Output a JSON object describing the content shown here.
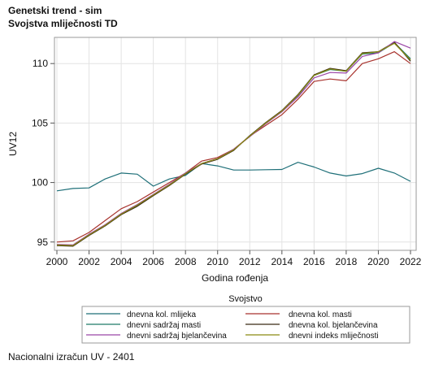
{
  "header": {
    "title": "Genetski trend - sim",
    "subtitle": "Svojstva mliječnosti TD"
  },
  "footnote": "Nacionalni izračun UV - 2401",
  "chart_data": {
    "type": "line",
    "title": "Genetski trend - sim",
    "subtitle": "Svojstva mliječnosti TD",
    "xlabel": "Godina rođenja",
    "ylabel": "UV12",
    "xlim": [
      2000,
      2022
    ],
    "ylim": [
      94.3,
      112.2
    ],
    "x_ticks": [
      2000,
      2002,
      2004,
      2006,
      2008,
      2010,
      2012,
      2014,
      2016,
      2018,
      2020,
      2022
    ],
    "y_ticks": [
      95,
      100,
      105,
      110
    ],
    "grid": true,
    "legend": {
      "title": "Svojstvo",
      "placement": "bottom"
    },
    "x": [
      2000,
      2001,
      2002,
      2003,
      2004,
      2005,
      2006,
      2007,
      2008,
      2009,
      2010,
      2011,
      2012,
      2013,
      2014,
      2015,
      2016,
      2017,
      2018,
      2019,
      2020,
      2021,
      2022
    ],
    "series": [
      {
        "name": "dnevna kol. mlijeka",
        "color": "#1e6f78",
        "values": [
          99.3,
          99.5,
          99.55,
          100.3,
          100.8,
          100.7,
          99.7,
          100.3,
          100.6,
          101.6,
          101.4,
          101.05,
          101.05,
          101.08,
          101.1,
          101.7,
          101.3,
          100.8,
          100.55,
          100.75,
          101.2,
          100.8,
          100.1
        ]
      },
      {
        "name": "dnevna kol. masti",
        "color": "#a8322d",
        "values": [
          95.0,
          95.1,
          95.8,
          96.8,
          97.8,
          98.4,
          99.2,
          100.0,
          100.8,
          101.8,
          102.1,
          102.8,
          103.9,
          104.8,
          105.7,
          107.0,
          108.5,
          108.7,
          108.55,
          110.0,
          110.4,
          111.0,
          110.0
        ]
      },
      {
        "name": "dnevni sadržaj masti",
        "color": "#1f7a68",
        "values": [
          94.75,
          94.7,
          95.6,
          96.4,
          97.35,
          98.1,
          98.95,
          99.8,
          100.75,
          101.6,
          102.0,
          102.75,
          103.9,
          105.0,
          106.0,
          107.3,
          109.0,
          109.5,
          109.35,
          110.8,
          110.9,
          111.75,
          110.4
        ]
      },
      {
        "name": "dnevna kol. bjelančevina",
        "color": "#3a2a14",
        "values": [
          94.7,
          94.65,
          95.55,
          96.35,
          97.3,
          98.0,
          98.9,
          99.75,
          100.7,
          101.55,
          101.95,
          102.7,
          103.95,
          105.05,
          106.05,
          107.4,
          109.05,
          109.6,
          109.4,
          110.9,
          111.0,
          111.8,
          110.2
        ]
      },
      {
        "name": "dnevni sadržaj bjelančevina",
        "color": "#9a46a8",
        "values": [
          94.8,
          94.75,
          95.65,
          96.45,
          97.4,
          98.15,
          99.0,
          99.85,
          100.8,
          101.6,
          102.0,
          102.8,
          103.85,
          104.95,
          105.95,
          107.2,
          108.8,
          109.25,
          109.2,
          110.6,
          110.9,
          111.85,
          111.3
        ]
      },
      {
        "name": "dnevni indeks mliječnosti",
        "color": "#8a8a10",
        "values": [
          94.75,
          94.7,
          95.6,
          96.4,
          97.35,
          98.1,
          98.95,
          99.8,
          100.75,
          101.6,
          102.0,
          102.75,
          103.9,
          105.0,
          106.0,
          107.35,
          109.0,
          109.55,
          109.35,
          110.85,
          111.0,
          111.7,
          110.3
        ]
      }
    ]
  }
}
